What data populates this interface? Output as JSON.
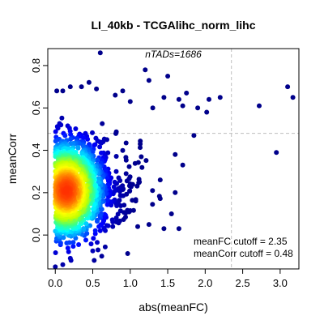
{
  "chart_data": {
    "type": "scatter",
    "title": "LI_40kb - TCGAlihc_norm_lihc",
    "xlabel": "abs(meanFC)",
    "ylabel": "meanCorr",
    "xlim": [
      -0.1,
      3.25
    ],
    "ylim": [
      -0.16,
      0.88
    ],
    "xticks": [
      0.0,
      0.5,
      1.0,
      1.5,
      2.0,
      2.5,
      3.0
    ],
    "xtick_labels": [
      "0.0",
      "0.5",
      "1.0",
      "1.5",
      "2.0",
      "2.5",
      "3.0"
    ],
    "yticks": [
      0.0,
      0.2,
      0.4,
      0.6,
      0.8
    ],
    "ytick_labels": [
      "0.0",
      "0.2",
      "0.4",
      "0.6",
      "0.8"
    ],
    "grid": false,
    "density_colored": true,
    "colors": {
      "low_density": "#00008B",
      "mid_density": "#00BFFF",
      "high_density": "#FF3000",
      "cutoff_line": "#BEBEBE"
    },
    "cutoffs": {
      "meanFC": 2.35,
      "meanCorr": 0.48
    },
    "annotations": {
      "ntads": "nTADs=1686",
      "fc_cutoff": "meanFC cutoff = 2.35",
      "corr_cutoff": "meanCorr cutoff = 0.48"
    },
    "n_points": 1686,
    "outlier_points": [
      {
        "x": 0.6,
        "y": 0.86
      },
      {
        "x": 1.2,
        "y": 0.78
      },
      {
        "x": 1.25,
        "y": 0.73
      },
      {
        "x": 1.5,
        "y": 0.75
      },
      {
        "x": 3.1,
        "y": 0.7
      },
      {
        "x": 3.17,
        "y": 0.65
      },
      {
        "x": 2.72,
        "y": 0.61
      },
      {
        "x": 2.2,
        "y": 0.65
      },
      {
        "x": 2.05,
        "y": 0.64
      },
      {
        "x": 1.9,
        "y": 0.6
      },
      {
        "x": 1.65,
        "y": 0.64
      },
      {
        "x": 1.45,
        "y": 0.65
      },
      {
        "x": 1.75,
        "y": 0.67
      },
      {
        "x": 1.7,
        "y": 0.61
      },
      {
        "x": 2.02,
        "y": 0.58
      },
      {
        "x": 1.85,
        "y": 0.47
      },
      {
        "x": 2.95,
        "y": 0.39
      },
      {
        "x": 1.6,
        "y": 0.38
      },
      {
        "x": 1.7,
        "y": 0.33
      },
      {
        "x": 1.6,
        "y": 0.2
      },
      {
        "x": 1.65,
        "y": 0.03
      },
      {
        "x": 1.55,
        "y": 0.1
      },
      {
        "x": 1.45,
        "y": 0.03
      },
      {
        "x": 1.25,
        "y": 0.05
      },
      {
        "x": 1.1,
        "y": 0.04
      },
      {
        "x": 0.6,
        "y": 0.02
      },
      {
        "x": 0.57,
        "y": -0.07
      },
      {
        "x": 0.62,
        "y": -0.1
      },
      {
        "x": 0.0,
        "y": -0.15
      },
      {
        "x": 0.1,
        "y": -0.14
      },
      {
        "x": 0.2,
        "y": -0.11
      },
      {
        "x": 0.02,
        "y": 0.68
      },
      {
        "x": 0.1,
        "y": 0.68
      },
      {
        "x": 0.2,
        "y": 0.7
      },
      {
        "x": 0.35,
        "y": 0.7
      },
      {
        "x": 0.45,
        "y": 0.72
      },
      {
        "x": 0.55,
        "y": 0.69
      },
      {
        "x": 0.8,
        "y": 0.66
      },
      {
        "x": 0.9,
        "y": 0.68
      },
      {
        "x": 1.0,
        "y": 0.63
      },
      {
        "x": 1.3,
        "y": 0.6
      }
    ]
  }
}
